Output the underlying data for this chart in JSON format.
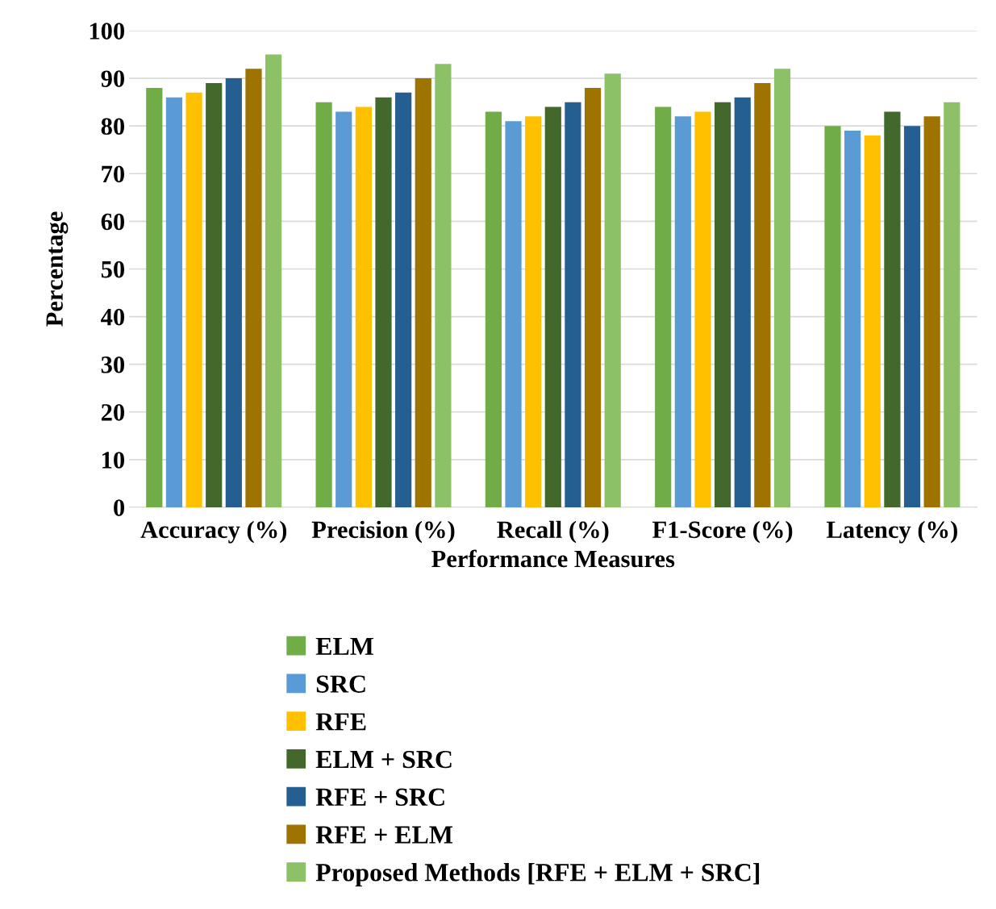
{
  "chart_data": {
    "type": "bar",
    "xlabel": "Performance Measures",
    "ylabel": "Percentage",
    "categories": [
      "Accuracy (%)",
      "Precision (%)",
      "Recall (%)",
      "F1-Score (%)",
      "Latency (%)"
    ],
    "series": [
      {
        "name": "ELM",
        "color": "#70ad47",
        "values": [
          88,
          85,
          83,
          84,
          80
        ]
      },
      {
        "name": "SRC",
        "color": "#5b9bd5",
        "values": [
          86,
          83,
          81,
          82,
          79
        ]
      },
      {
        "name": "RFE",
        "color": "#ffc000",
        "values": [
          87,
          84,
          82,
          83,
          78
        ]
      },
      {
        "name": "ELM + SRC",
        "color": "#43682b",
        "values": [
          89,
          86,
          84,
          85,
          83
        ]
      },
      {
        "name": "RFE + SRC",
        "color": "#255e91",
        "values": [
          90,
          87,
          85,
          86,
          80
        ]
      },
      {
        "name": "RFE + ELM",
        "color": "#9e7300",
        "values": [
          92,
          90,
          88,
          89,
          82
        ]
      },
      {
        "name": "Proposed Methods [RFE + ELM + SRC]",
        "color": "#8cc168",
        "values": [
          95,
          93,
          91,
          92,
          85
        ]
      }
    ],
    "ylim": [
      0,
      100
    ],
    "yticks": [
      0,
      10,
      20,
      30,
      40,
      50,
      60,
      70,
      80,
      90,
      100
    ],
    "grid": "y",
    "legend": "bottom"
  }
}
